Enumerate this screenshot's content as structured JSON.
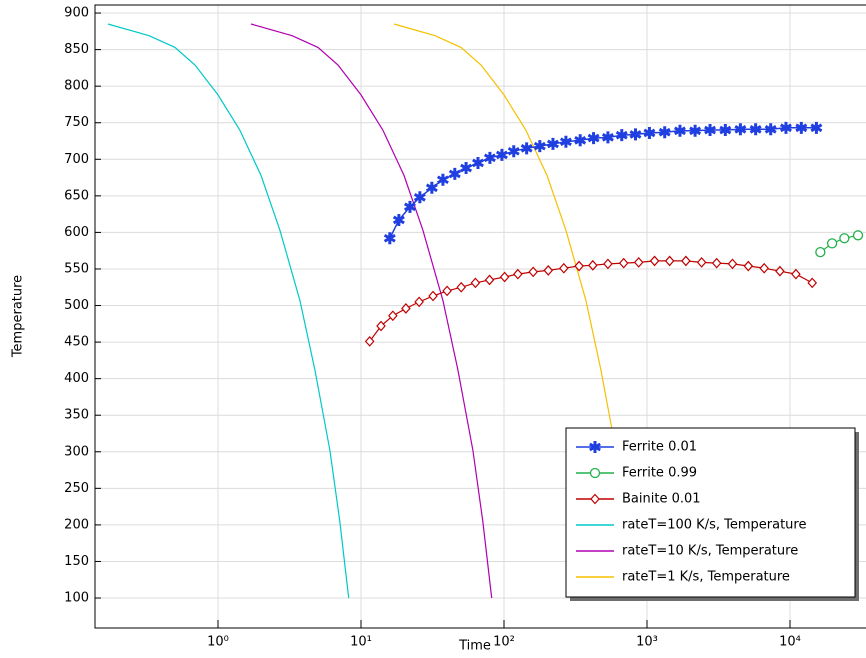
{
  "chart_data": {
    "type": "line",
    "xlabel": "Time",
    "ylabel": "Temperature",
    "xscale": "log",
    "grid": true,
    "legend": "lower right",
    "xlim": [
      0.138,
      34000
    ],
    "ylim": [
      59,
      911
    ],
    "xticks": [
      {
        "value": 1,
        "label": "10⁰"
      },
      {
        "value": 10,
        "label": "10¹"
      },
      {
        "value": 100,
        "label": "10²"
      },
      {
        "value": 1000,
        "label": "10³"
      },
      {
        "value": 10000,
        "label": "10⁴"
      }
    ],
    "yticks": [
      100,
      150,
      200,
      250,
      300,
      350,
      400,
      450,
      500,
      550,
      600,
      650,
      700,
      750,
      800,
      850,
      900
    ],
    "series": [
      {
        "name": "Ferrite 0.01",
        "color": "#1f3fe0",
        "marker": "asterisk",
        "x": [
          15.9,
          18.4,
          22.0,
          25.8,
          31.3,
          37.4,
          45.3,
          54.3,
          65.8,
          79.7,
          96.7,
          117,
          144,
          178,
          220,
          271,
          341,
          423,
          533,
          666,
          831,
          1040,
          1330,
          1700,
          2170,
          2760,
          3530,
          4500,
          5750,
          7330,
          9370,
          12000,
          15300
        ],
        "values": [
          592,
          617,
          635,
          648,
          661,
          672,
          680,
          688,
          695,
          702,
          706,
          711,
          715,
          718,
          721,
          724,
          726,
          729,
          730,
          733,
          734,
          736,
          737,
          739,
          739,
          740,
          740,
          741,
          741,
          741,
          743,
          743,
          743
        ]
      },
      {
        "name": "Ferrite 0.99",
        "color": "#22b04a",
        "marker": "circle",
        "x": [
          16300,
          19700,
          24000,
          29900
        ],
        "values": [
          573,
          585,
          592,
          596
        ]
      },
      {
        "name": "Bainite 0.01",
        "color": "#c00000",
        "marker": "diamond",
        "x": [
          11.5,
          13.8,
          16.7,
          20.6,
          25.5,
          31.9,
          40.0,
          50.2,
          63.1,
          79.2,
          101,
          125,
          160,
          204,
          262,
          335,
          418,
          533,
          687,
          875,
          1130,
          1440,
          1870,
          2410,
          3070,
          3960,
          5110,
          6600,
          8500,
          11000,
          14300
        ],
        "values": [
          451,
          472,
          486,
          496,
          505,
          513,
          520,
          525,
          531,
          535,
          539,
          543,
          546,
          548,
          551,
          554,
          555,
          557,
          558,
          559,
          561,
          561,
          561,
          559,
          558,
          557,
          554,
          551,
          547,
          543,
          531
        ]
      },
      {
        "name": "rateT=100 K/s, Temperature",
        "color": "#00c8c8",
        "marker": "none",
        "x": [
          0.17,
          0.33,
          0.5,
          0.69,
          1.0,
          1.42,
          2.0,
          2.71,
          3.74,
          4.76,
          6.06,
          7.1,
          8.2
        ],
        "values": [
          885,
          869,
          853,
          829,
          788,
          740,
          678,
          603,
          507,
          412,
          302,
          206,
          100
        ]
      },
      {
        "name": "rateT=10 K/s, Temperature",
        "color": "#b000b0",
        "marker": "none",
        "x": [
          1.7,
          3.3,
          5.0,
          6.9,
          10,
          14.2,
          20,
          27.1,
          37.4,
          47.6,
          60.6,
          71,
          82
        ],
        "values": [
          885,
          869,
          853,
          829,
          788,
          740,
          678,
          603,
          507,
          412,
          302,
          206,
          100
        ]
      },
      {
        "name": "rateT=1 K/s, Temperature",
        "color": "#f5c000",
        "marker": "none",
        "x": [
          17,
          33,
          50,
          69,
          100,
          142,
          200,
          271,
          374,
          476,
          606,
          710,
          820
        ],
        "values": [
          885,
          869,
          853,
          829,
          788,
          740,
          678,
          603,
          507,
          412,
          302,
          206,
          100
        ]
      }
    ]
  }
}
